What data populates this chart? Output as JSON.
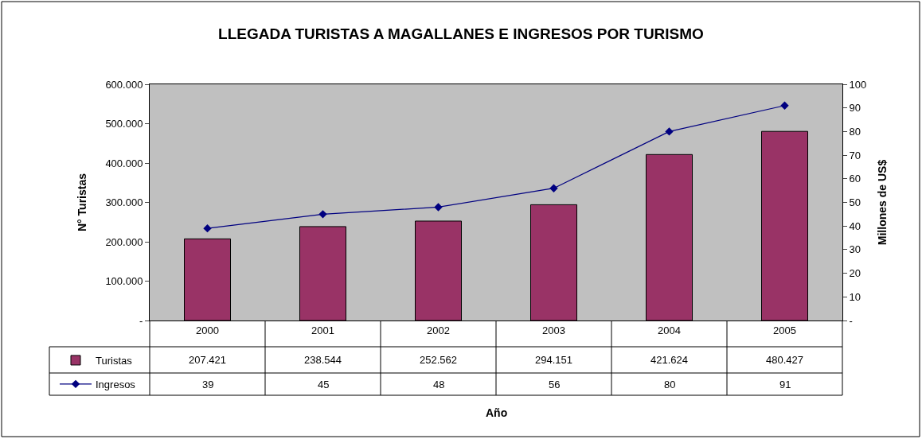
{
  "chart_data": {
    "type": "bar",
    "title": "LLEGADA TURISTAS A MAGALLANES E INGRESOS POR TURISMO",
    "annotations": [
      "Año"
    ],
    "ylabel": "N° Turistas",
    "y2label": "Millones de US$",
    "categories": [
      "2000",
      "2001",
      "2002",
      "2003",
      "2004",
      "2005"
    ],
    "series": [
      {
        "name": "Turistas",
        "color": "#993366",
        "values": [
          207421,
          238544,
          252562,
          294151,
          421624,
          480427
        ],
        "value_labels": [
          "207.421",
          "238.544",
          "252.562",
          "294.151",
          "421.624",
          "480.427"
        ]
      },
      {
        "name": "Ingresos",
        "type": "line",
        "axis": "y2",
        "color": "#000080",
        "marker": "diamond",
        "values": [
          39,
          45,
          48,
          56,
          80,
          91
        ],
        "value_labels": [
          "39",
          "45",
          "48",
          "56",
          "80",
          "91"
        ]
      }
    ],
    "ylim": [
      0,
      600000
    ],
    "yticks": [
      {
        "value": 0,
        "label": "-"
      },
      {
        "value": 100000,
        "label": "100.000"
      },
      {
        "value": 200000,
        "label": "200.000"
      },
      {
        "value": 300000,
        "label": "300.000"
      },
      {
        "value": 400000,
        "label": "400.000"
      },
      {
        "value": 500000,
        "label": "500.000"
      },
      {
        "value": 600000,
        "label": "600.000"
      }
    ],
    "y2lim": [
      0,
      100
    ],
    "y2ticks": [
      {
        "value": 0,
        "label": "-"
      },
      10,
      20,
      30,
      40,
      50,
      60,
      70,
      80,
      90,
      100
    ],
    "grid": false,
    "legend": "bottom left"
  }
}
